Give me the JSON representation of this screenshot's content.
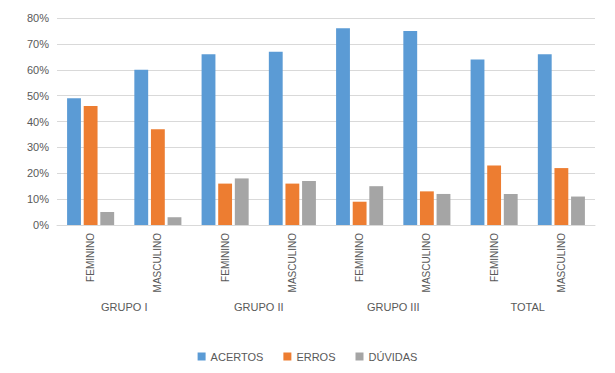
{
  "chart_data": {
    "type": "bar",
    "categories": [
      "FEMININO",
      "MASCULINO",
      "FEMININO",
      "MASCULINO",
      "FEMININO",
      "MASCULINO",
      "FEMININO",
      "MASCULINO"
    ],
    "groups": [
      "GRUPO I",
      "GRUPO II",
      "GRUPO III",
      "TOTAL"
    ],
    "series": [
      {
        "name": "ACERTOS",
        "color": "#5b9bd5",
        "values": [
          49,
          60,
          66,
          67,
          76,
          75,
          64,
          66
        ]
      },
      {
        "name": "ERROS",
        "color": "#ed7d31",
        "values": [
          46,
          37,
          16,
          16,
          9,
          13,
          23,
          22
        ]
      },
      {
        "name": "DÚVIDAS",
        "color": "#a5a5a5",
        "values": [
          5,
          3,
          18,
          17,
          15,
          12,
          12,
          11
        ]
      }
    ],
    "ylim": [
      0,
      80
    ],
    "yticks": [
      {
        "value": 0,
        "label": "0%"
      },
      {
        "value": 10,
        "label": "10%"
      },
      {
        "value": 20,
        "label": "20%"
      },
      {
        "value": 30,
        "label": "30%"
      },
      {
        "value": 40,
        "label": "40%"
      },
      {
        "value": 50,
        "label": "50%"
      },
      {
        "value": 60,
        "label": "60%"
      },
      {
        "value": 70,
        "label": "70%"
      },
      {
        "value": 80,
        "label": "80%"
      }
    ],
    "grid": true,
    "legend": "bottom"
  }
}
